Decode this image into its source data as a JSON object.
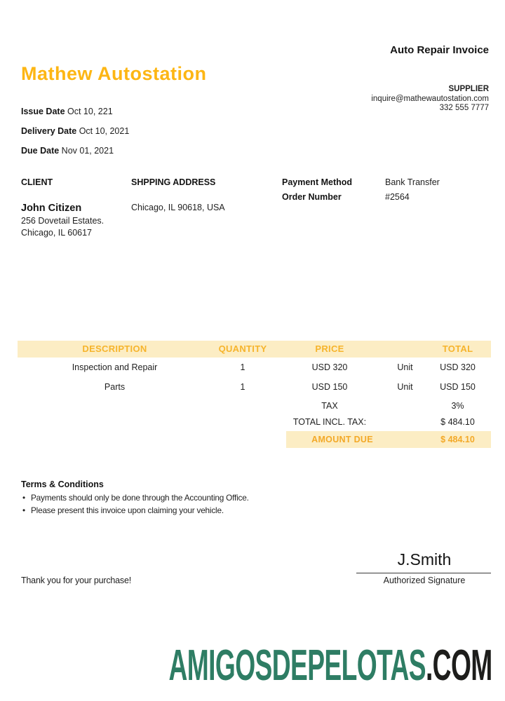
{
  "header": {
    "doc_type_label": "Auto Repair Invoice",
    "company_name": "Mathew Autostation"
  },
  "supplier": {
    "label": "SUPPLIER",
    "email": "inquire@mathewautostation.com",
    "phone": "332 555 7777"
  },
  "dates": [
    {
      "label": "Issue Date",
      "value": "Oct 10, 221"
    },
    {
      "label": "Delivery Date",
      "value": "Oct 10, 2021"
    },
    {
      "label": "Due Date",
      "value": "Nov 01, 2021"
    }
  ],
  "parties": {
    "client": {
      "heading": "CLIENT",
      "name": "John Citizen",
      "address_line1": "256 Dovetail Estates.",
      "address_line2": "Chicago, IL 60617"
    },
    "shipping": {
      "heading": "SHPPING ADDRESS",
      "address": "Chicago, IL 90618, USA"
    },
    "payment": {
      "method_label": "Payment Method",
      "method_value": "Bank Transfer",
      "order_label": "Order Number",
      "order_value": "#2564"
    }
  },
  "table": {
    "headers": {
      "description": "DESCRIPTION",
      "quantity": "QUANTITY",
      "price": "PRICE",
      "total": "TOTAL"
    },
    "rows": [
      {
        "description": "Inspection and Repair",
        "quantity": "1",
        "price": "USD 320",
        "unit": "Unit",
        "total": "USD 320"
      },
      {
        "description": "Parts",
        "quantity": "1",
        "price": "USD 150",
        "unit": "Unit",
        "total": "USD 150"
      }
    ],
    "summary": [
      {
        "label": "TAX",
        "value": "3%"
      },
      {
        "label": "TOTAL INCL. TAX:",
        "value": "$ 484.10"
      }
    ],
    "amount_due": {
      "label": "AMOUNT DUE",
      "value": "$ 484.10"
    }
  },
  "terms": {
    "heading": "Terms & Conditions",
    "bullet": "•",
    "items": [
      "Payments should only be done through the Accounting Office.",
      "Please present this invoice upon claiming your vehicle."
    ]
  },
  "signature": {
    "name": "J.Smith",
    "label": "Authorized Signature"
  },
  "footer": {
    "thanks": "Thank you for your purchase!"
  },
  "watermark": {
    "main": "AMIGOSDEPELOTAS",
    "suffix": ".COM"
  },
  "colors": {
    "accent_gold": "#FDB614",
    "table_band_bg": "#FCEDC4",
    "table_band_text": "#F6B42C",
    "amount_due_text": "#F3A928",
    "watermark_green": "#2E7D64",
    "watermark_dark": "#1D1D1B"
  }
}
